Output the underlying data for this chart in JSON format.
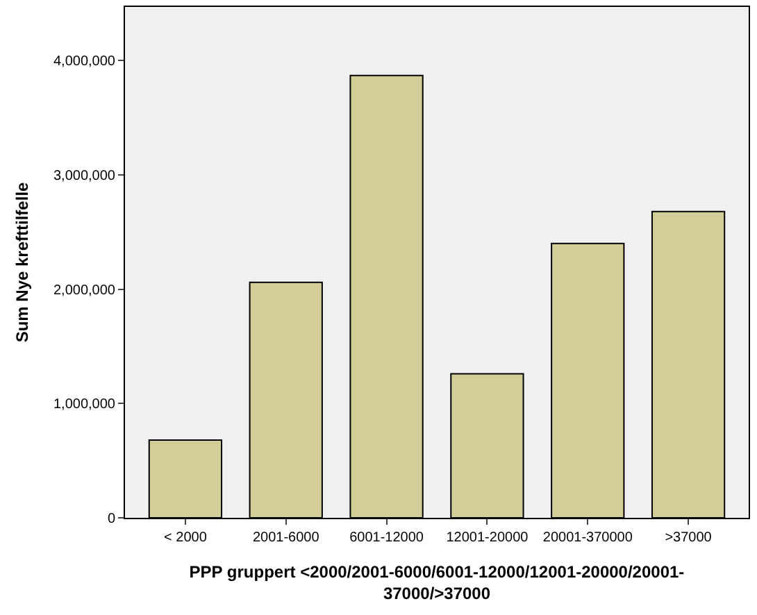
{
  "chart_data": {
    "type": "bar",
    "xlabel": "PPP gruppert <2000/2001-6000/6001-12000/12001-20000/20001-\n37000/>37000",
    "ylabel": "Sum Nye krefttilfelle",
    "categories": [
      "< 2000",
      "2001-6000",
      "6001-12000",
      "12001-20000",
      "20001-370000",
      ">37000"
    ],
    "values": [
      680000,
      2060000,
      3870000,
      1260000,
      2400000,
      2680000
    ],
    "color": "#d3ce97",
    "ylim": [
      0,
      4470000
    ],
    "yticks": [
      {
        "value": 0,
        "label": "0"
      },
      {
        "value": 1000000,
        "label": "1,000,000"
      },
      {
        "value": 2000000,
        "label": "2,000,000"
      },
      {
        "value": 3000000,
        "label": "3,000,000"
      },
      {
        "value": 4000000,
        "label": "4,000,000"
      }
    ],
    "grid": false
  }
}
